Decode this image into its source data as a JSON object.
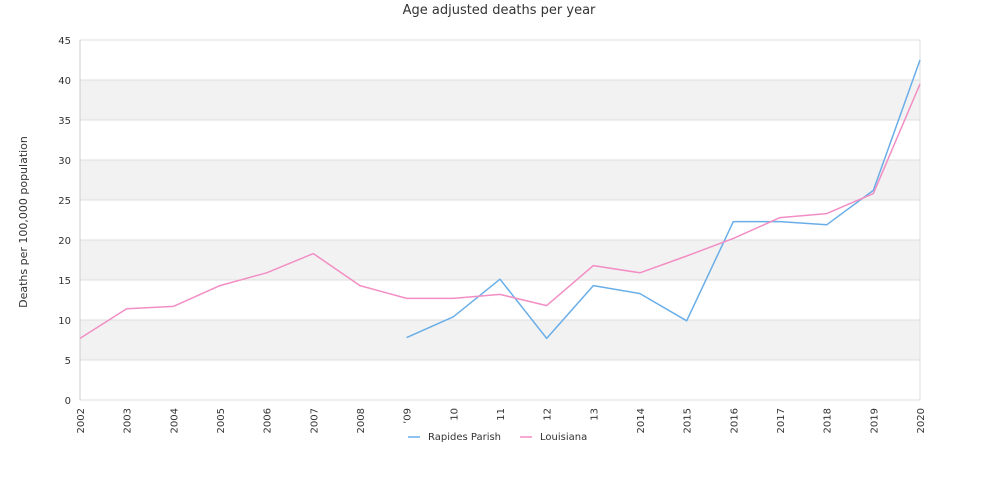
{
  "chart_data": {
    "type": "line",
    "title": "Age adjusted deaths per year",
    "xlabel": "",
    "ylabel": "Deaths per 100,000 population",
    "ylim": [
      0,
      45
    ],
    "yticks": [
      "0",
      "5",
      "10",
      "15",
      "20",
      "25",
      "30",
      "35",
      "40",
      "45"
    ],
    "x": [
      "2002",
      "2003",
      "2004",
      "2005",
      "2006",
      "2007",
      "2008",
      "2009",
      "2010",
      "2011",
      "2012",
      "2013",
      "2014",
      "2015",
      "2016",
      "2017",
      "2018",
      "2019",
      "2020"
    ],
    "xtick_labels": [
      "2002",
      "2003",
      "2004",
      "2005",
      "2006",
      "2007",
      "2008",
      "’09",
      "10",
      "11",
      "12",
      "13",
      "2014",
      "2015",
      "2016",
      "2017",
      "2018",
      "2019",
      "2020"
    ],
    "series": [
      {
        "name": "Rapides Parish",
        "color": "#6aaee8",
        "values": [
          null,
          null,
          null,
          null,
          null,
          null,
          null,
          7.8,
          10.4,
          15.1,
          7.7,
          14.3,
          13.3,
          9.9,
          22.3,
          22.3,
          21.9,
          26.2,
          42.5
        ]
      },
      {
        "name": "Louisiana",
        "color": "#f28ec4",
        "values": [
          7.7,
          11.4,
          11.7,
          14.3,
          15.9,
          18.3,
          14.3,
          12.7,
          12.7,
          13.2,
          11.8,
          16.8,
          15.9,
          18.0,
          20.2,
          22.8,
          23.3,
          25.8,
          39.5
        ]
      }
    ],
    "grid": true,
    "banded_background": true,
    "legend_position": "bottom-center"
  }
}
